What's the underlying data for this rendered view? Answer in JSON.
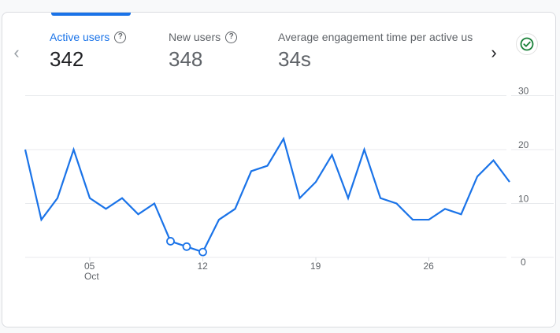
{
  "metrics": [
    {
      "label": "Active users",
      "value": "342",
      "active": true,
      "help_icon": "help-circle-icon"
    },
    {
      "label": "New users",
      "value": "348",
      "active": false,
      "help_icon": "help-circle-icon"
    },
    {
      "label": "Average engagement time per active us",
      "value": "34s",
      "active": false
    }
  ],
  "nav": {
    "prev_icon": "‹",
    "next_icon": "›"
  },
  "status": {
    "icon": "check-circle-icon",
    "color": "#188038"
  },
  "colors": {
    "accent": "#1a73e8",
    "line": "#1a73e8",
    "grid": "#e8eaed"
  },
  "chart_data": {
    "type": "line",
    "title": "Active users",
    "xlabel": "",
    "ylabel": "",
    "x": [
      "Oct 01",
      "Oct 02",
      "Oct 03",
      "Oct 04",
      "Oct 05",
      "Oct 06",
      "Oct 07",
      "Oct 08",
      "Oct 09",
      "Oct 10",
      "Oct 11",
      "Oct 12",
      "Oct 13",
      "Oct 14",
      "Oct 15",
      "Oct 16",
      "Oct 17",
      "Oct 18",
      "Oct 19",
      "Oct 20",
      "Oct 21",
      "Oct 22",
      "Oct 23",
      "Oct 24",
      "Oct 25",
      "Oct 26",
      "Oct 27",
      "Oct 28",
      "Oct 29",
      "Oct 30",
      "Oct 31"
    ],
    "series": [
      {
        "name": "Active users",
        "values": [
          20,
          7,
          11,
          20,
          11,
          9,
          11,
          8,
          10,
          3,
          2,
          1,
          7,
          9,
          16,
          17,
          22,
          11,
          14,
          19,
          11,
          20,
          11,
          10,
          7,
          7,
          9,
          8,
          15,
          18,
          14
        ]
      }
    ],
    "highlighted_points": [
      9,
      10,
      11
    ],
    "x_ticks": [
      {
        "index": 4,
        "label": "05",
        "sublabel": "Oct"
      },
      {
        "index": 11,
        "label": "12"
      },
      {
        "index": 18,
        "label": "19"
      },
      {
        "index": 25,
        "label": "26"
      }
    ],
    "y_ticks": [
      "0",
      "10",
      "20",
      "30"
    ],
    "ylim": [
      0,
      30
    ],
    "grid": true,
    "y_axis_position": "right"
  }
}
